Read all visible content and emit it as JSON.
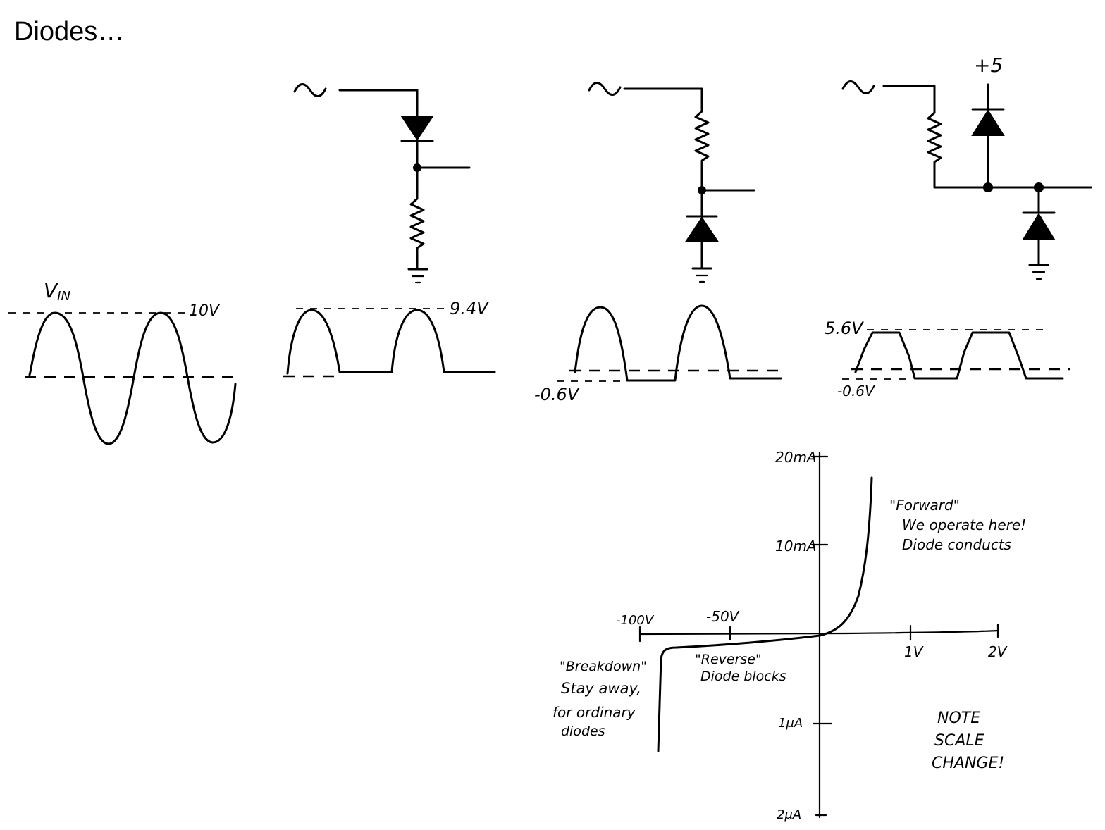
{
  "title": "Diodes…",
  "waveforms": {
    "vin_label": "V",
    "vin_subscript": "IN",
    "vin_amplitude": "10V",
    "half_wave_peak": "9.4V",
    "clip_negative": "-0.6V",
    "clip_high": "5.6V",
    "clip_low": "-0.6V"
  },
  "circuits": {
    "supply_label": "+5"
  },
  "iv_chart": {
    "y_ticks": [
      "20mA",
      "10mA",
      "1μA",
      "2μA"
    ],
    "x_ticks": [
      "-100V",
      "-50V",
      "1V",
      "2V"
    ],
    "forward": [
      "\"Forward\"",
      "We operate here!",
      "Diode conducts"
    ],
    "reverse": [
      "\"Reverse\"",
      "Diode blocks"
    ],
    "breakdown": [
      "\"Breakdown\"",
      "Stay away,",
      "for ordinary",
      "diodes"
    ],
    "note": [
      "NOTE",
      "SCALE",
      "CHANGE!"
    ]
  }
}
